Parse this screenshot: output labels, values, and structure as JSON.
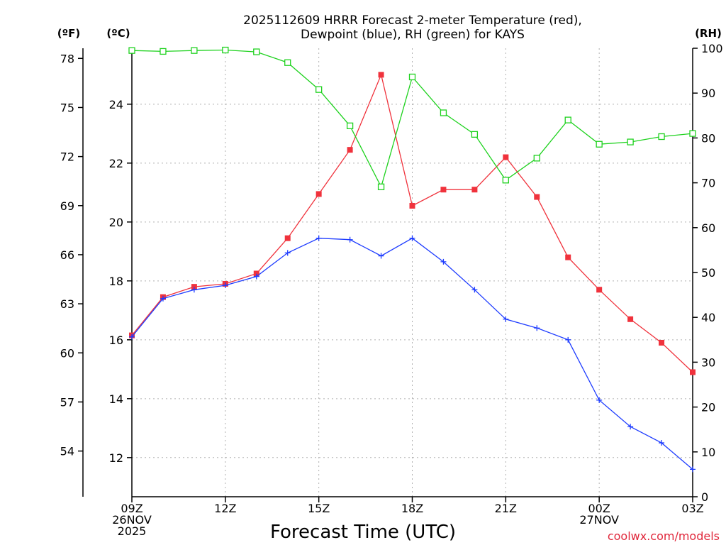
{
  "chart_data": {
    "type": "line",
    "title_line1": "2025112609 HRRR Forecast 2-meter Temperature (red),",
    "title_line2": "Dewpoint (blue), RH (green) for KAYS",
    "xlabel": "Forecast Time (UTC)",
    "credit": "coolwx.com/models",
    "left_units_f": "(ºF)",
    "left_units_c": "(ºC)",
    "right_units": "(RH)",
    "x_hours": [
      0,
      1,
      2,
      3,
      4,
      5,
      6,
      7,
      8,
      9,
      10,
      11,
      12,
      13,
      14,
      15,
      16,
      17,
      18
    ],
    "x_range": [
      0,
      18
    ],
    "x_ticks": [
      {
        "hour": 0,
        "lines": [
          "09Z",
          "26NOV",
          "2025"
        ]
      },
      {
        "hour": 3,
        "lines": [
          "12Z"
        ]
      },
      {
        "hour": 6,
        "lines": [
          "15Z"
        ]
      },
      {
        "hour": 9,
        "lines": [
          "18Z"
        ]
      },
      {
        "hour": 12,
        "lines": [
          "21Z"
        ]
      },
      {
        "hour": 15,
        "lines": [
          "00Z",
          "27NOV"
        ]
      },
      {
        "hour": 18,
        "lines": [
          "03Z"
        ]
      }
    ],
    "c_range": [
      10.67,
      25.9
    ],
    "c_ticks": [
      "12",
      "14",
      "16",
      "18",
      "20",
      "22",
      "24"
    ],
    "f_ticks": [
      "54",
      "57",
      "60",
      "63",
      "66",
      "69",
      "72",
      "75",
      "78"
    ],
    "rh_range": [
      0,
      100
    ],
    "rh_ticks": [
      "0",
      "10",
      "20",
      "30",
      "40",
      "50",
      "60",
      "70",
      "80",
      "90",
      "100"
    ],
    "series": [
      {
        "name": "Temperature",
        "unit": "C",
        "color": "#f0323c",
        "marker": "filled-square",
        "values": [
          16.15,
          17.45,
          17.8,
          17.9,
          18.25,
          19.45,
          20.95,
          22.45,
          25.0,
          20.55,
          21.1,
          21.1,
          22.2,
          20.85,
          18.8,
          17.7,
          16.7,
          15.9,
          14.9
        ]
      },
      {
        "name": "Dewpoint",
        "unit": "C",
        "color": "#1e3cff",
        "marker": "plus",
        "values": [
          16.1,
          17.4,
          17.7,
          17.85,
          18.15,
          18.95,
          19.45,
          19.4,
          18.85,
          19.45,
          18.65,
          17.7,
          16.7,
          16.4,
          16.0,
          13.95,
          13.05,
          12.5,
          11.6
        ]
      },
      {
        "name": "RH",
        "unit": "%",
        "color": "#1ed21e",
        "marker": "open-square",
        "values": [
          99.5,
          99.3,
          99.5,
          99.6,
          99.2,
          96.8,
          90.8,
          82.7,
          69.1,
          93.6,
          85.6,
          80.8,
          70.6,
          75.5,
          84.0,
          78.6,
          79.1,
          80.3,
          81.0
        ]
      }
    ]
  }
}
